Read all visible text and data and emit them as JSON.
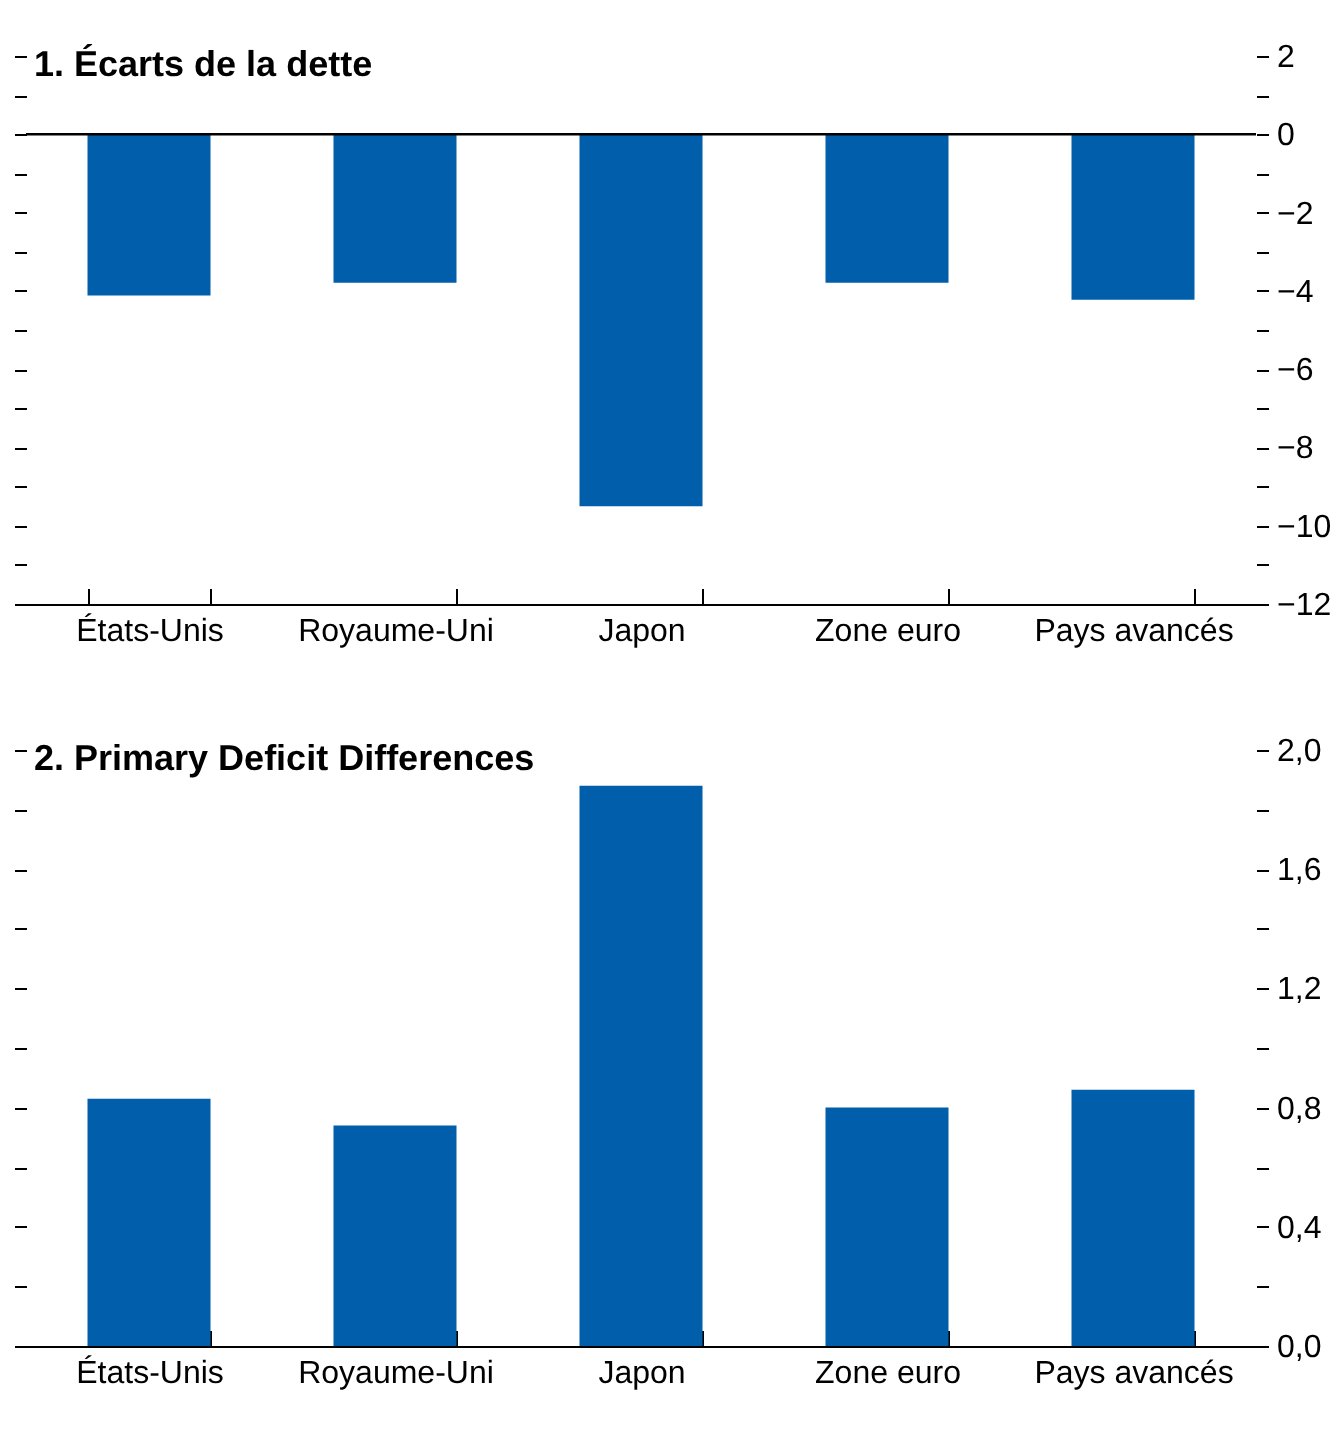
{
  "chart_data": [
    {
      "type": "bar",
      "title": "1. Écarts de la dette",
      "categories": [
        "États-Unis",
        "Royaume-Uni",
        "Japon",
        "Zone euro",
        "Pays avancés"
      ],
      "values": [
        -4.12,
        -3.79,
        -9.5,
        -3.79,
        -4.23
      ],
      "color": "#005eaa",
      "ylim": [
        -12,
        2
      ],
      "yticks": [
        {
          "value": 2,
          "label": "2"
        },
        {
          "value": 1,
          "label": null
        },
        {
          "value": 0,
          "label": "0"
        },
        {
          "value": -1,
          "label": null
        },
        {
          "value": -2,
          "label": "−2"
        },
        {
          "value": -3,
          "label": null
        },
        {
          "value": -4,
          "label": "−4"
        },
        {
          "value": -5,
          "label": null
        },
        {
          "value": -6,
          "label": "−6"
        },
        {
          "value": -7,
          "label": null
        },
        {
          "value": -8,
          "label": "−8"
        },
        {
          "value": -9,
          "label": null
        },
        {
          "value": -10,
          "label": "−10"
        },
        {
          "value": -11,
          "label": null
        },
        {
          "value": -12,
          "label": "−12"
        }
      ],
      "ref_lines": [
        {
          "axis": "y",
          "value": 0,
          "color": "#000000"
        }
      ],
      "grid": false
    },
    {
      "type": "bar",
      "title": "2. Primary Deficit Differences",
      "categories": [
        "États-Unis",
        "Royaume-Uni",
        "Japon",
        "Zone euro",
        "Pays avancés"
      ],
      "values": [
        0.83,
        0.74,
        1.88,
        0.8,
        0.86
      ],
      "color": "#005eaa",
      "ylim": [
        0,
        2
      ],
      "yticks": [
        {
          "value": 2,
          "label": "2,0"
        },
        {
          "value": 1.8,
          "label": null
        },
        {
          "value": 1.6,
          "label": "1,6"
        },
        {
          "value": 1.4,
          "label": null
        },
        {
          "value": 1.2,
          "label": "1,2"
        },
        {
          "value": 1,
          "label": null
        },
        {
          "value": 0.8,
          "label": "0,8"
        },
        {
          "value": 0.6,
          "label": null
        },
        {
          "value": 0.4,
          "label": "0,4"
        },
        {
          "value": 0.2,
          "label": null
        },
        {
          "value": 0,
          "label": "0,0"
        }
      ],
      "grid": false
    }
  ]
}
